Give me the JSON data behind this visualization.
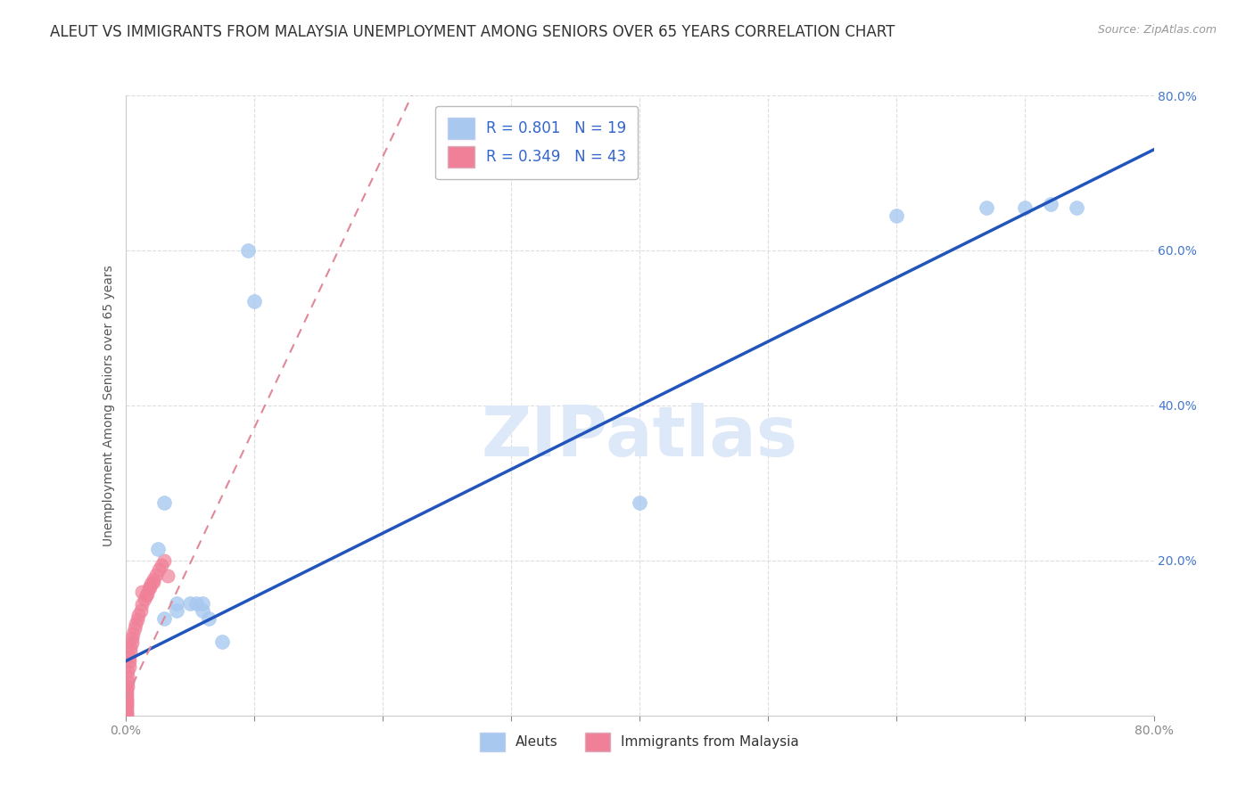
{
  "title": "ALEUT VS IMMIGRANTS FROM MALAYSIA UNEMPLOYMENT AMONG SENIORS OVER 65 YEARS CORRELATION CHART",
  "source": "Source: ZipAtlas.com",
  "ylabel": "Unemployment Among Seniors over 65 years",
  "xlim": [
    0,
    0.8
  ],
  "ylim": [
    0,
    0.8
  ],
  "aleut_color": "#a8c8f0",
  "malaysia_color": "#f08098",
  "aleut_R": 0.801,
  "aleut_N": 19,
  "malaysia_R": 0.349,
  "malaysia_N": 43,
  "regression_line_color": "#2255bb",
  "regression_dashed_color": "#e08898",
  "watermark": "ZIPatlas",
  "watermark_color": "#dde8f8",
  "aleut_points": [
    [
      0.025,
      0.215
    ],
    [
      0.03,
      0.275
    ],
    [
      0.03,
      0.125
    ],
    [
      0.04,
      0.135
    ],
    [
      0.04,
      0.145
    ],
    [
      0.05,
      0.145
    ],
    [
      0.055,
      0.145
    ],
    [
      0.06,
      0.135
    ],
    [
      0.06,
      0.145
    ],
    [
      0.065,
      0.125
    ],
    [
      0.075,
      0.095
    ],
    [
      0.095,
      0.6
    ],
    [
      0.1,
      0.535
    ],
    [
      0.4,
      0.275
    ],
    [
      0.6,
      0.645
    ],
    [
      0.67,
      0.655
    ],
    [
      0.7,
      0.655
    ],
    [
      0.72,
      0.66
    ],
    [
      0.74,
      0.655
    ]
  ],
  "malaysia_points": [
    [
      0.001,
      0.001
    ],
    [
      0.001,
      0.003
    ],
    [
      0.001,
      0.006
    ],
    [
      0.001,
      0.01
    ],
    [
      0.001,
      0.013
    ],
    [
      0.001,
      0.016
    ],
    [
      0.001,
      0.019
    ],
    [
      0.001,
      0.022
    ],
    [
      0.001,
      0.026
    ],
    [
      0.001,
      0.03
    ],
    [
      0.001,
      0.034
    ],
    [
      0.002,
      0.038
    ],
    [
      0.002,
      0.044
    ],
    [
      0.002,
      0.05
    ],
    [
      0.002,
      0.057
    ],
    [
      0.003,
      0.063
    ],
    [
      0.003,
      0.07
    ],
    [
      0.003,
      0.076
    ],
    [
      0.004,
      0.082
    ],
    [
      0.004,
      0.088
    ],
    [
      0.005,
      0.094
    ],
    [
      0.005,
      0.1
    ],
    [
      0.006,
      0.106
    ],
    [
      0.007,
      0.112
    ],
    [
      0.008,
      0.118
    ],
    [
      0.009,
      0.124
    ],
    [
      0.01,
      0.13
    ],
    [
      0.012,
      0.136
    ],
    [
      0.013,
      0.143
    ],
    [
      0.015,
      0.15
    ],
    [
      0.017,
      0.157
    ],
    [
      0.018,
      0.164
    ],
    [
      0.02,
      0.17
    ],
    [
      0.022,
      0.176
    ],
    [
      0.024,
      0.182
    ],
    [
      0.026,
      0.188
    ],
    [
      0.028,
      0.194
    ],
    [
      0.03,
      0.2
    ],
    [
      0.033,
      0.18
    ],
    [
      0.013,
      0.16
    ],
    [
      0.016,
      0.155
    ],
    [
      0.019,
      0.165
    ],
    [
      0.022,
      0.172
    ]
  ],
  "background_color": "#ffffff",
  "grid_color": "#dddddd",
  "title_fontsize": 12,
  "axis_label_fontsize": 10,
  "tick_fontsize": 10,
  "legend_fontsize": 12
}
